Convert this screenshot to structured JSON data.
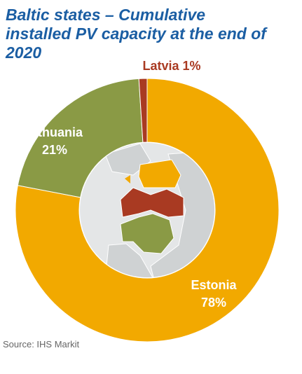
{
  "chart_data": {
    "type": "donut",
    "title": "Baltic states – Cumulative installed PV capacity at the end of 2020",
    "categories": [
      "Estonia",
      "Lithuania",
      "Latvia"
    ],
    "values": [
      78,
      21,
      1
    ],
    "value_labels": [
      "78%",
      "21%",
      "1%"
    ],
    "colors": [
      "#f2a900",
      "#8a9a45",
      "#a93a22"
    ],
    "source": "Source: IHS Markit"
  }
}
